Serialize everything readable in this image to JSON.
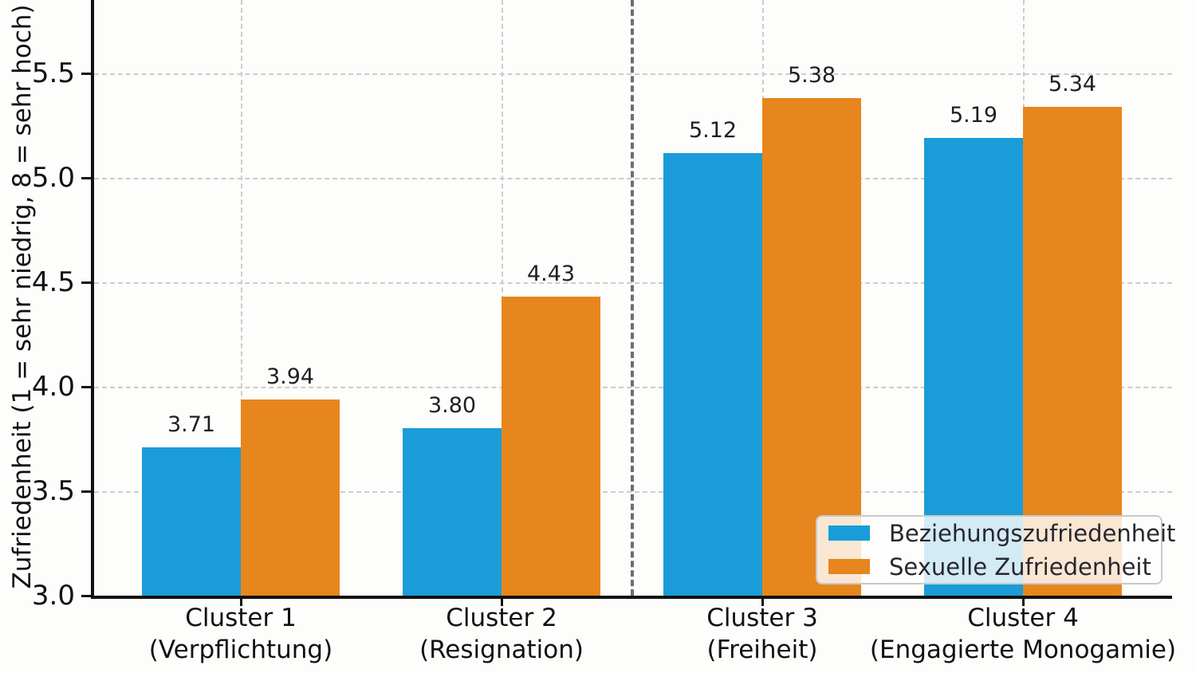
{
  "chart_data": {
    "type": "bar",
    "title": "",
    "ylabel": "Zufriedenheit (1 = sehr niedrig, 8 = sehr hoch)",
    "ylim": [
      3.0,
      5.85
    ],
    "yticks": [
      3.0,
      3.5,
      4.0,
      4.5,
      5.0,
      5.5
    ],
    "ytick_labels": [
      "3.0",
      "3.5",
      "4.0",
      "4.5",
      "5.0",
      "5.5"
    ],
    "grid": true,
    "grid_style": "dashed",
    "categories": [
      {
        "name": "Cluster 1",
        "subtitle": "(Verpflichtung)"
      },
      {
        "name": "Cluster 2",
        "subtitle": "(Resignation)"
      },
      {
        "name": "Cluster 3",
        "subtitle": "(Freiheit)"
      },
      {
        "name": "Cluster 4",
        "subtitle": "(Engagierte Monogamie)"
      }
    ],
    "series": [
      {
        "name": "Beziehungszufriedenheit",
        "color": "#1a9cd8",
        "values": [
          3.71,
          3.8,
          5.12,
          5.19
        ]
      },
      {
        "name": "Sexuelle Zufriedenheit",
        "color": "#e7861d",
        "values": [
          3.94,
          4.43,
          5.38,
          5.34
        ]
      }
    ],
    "value_label_format": "2-decimals",
    "separator": {
      "after_category_index": 1,
      "style": "dashed",
      "color": "#6e6e6e"
    },
    "legend": {
      "position": "lower right",
      "entries": [
        "Beziehungszufriedenheit",
        "Sexuelle Zufriedenheit"
      ]
    },
    "colors": {
      "axis": "#111111",
      "grid": "#cccccc",
      "value_label_text": "#1f1f1f",
      "background": "#fdfdfb"
    }
  }
}
